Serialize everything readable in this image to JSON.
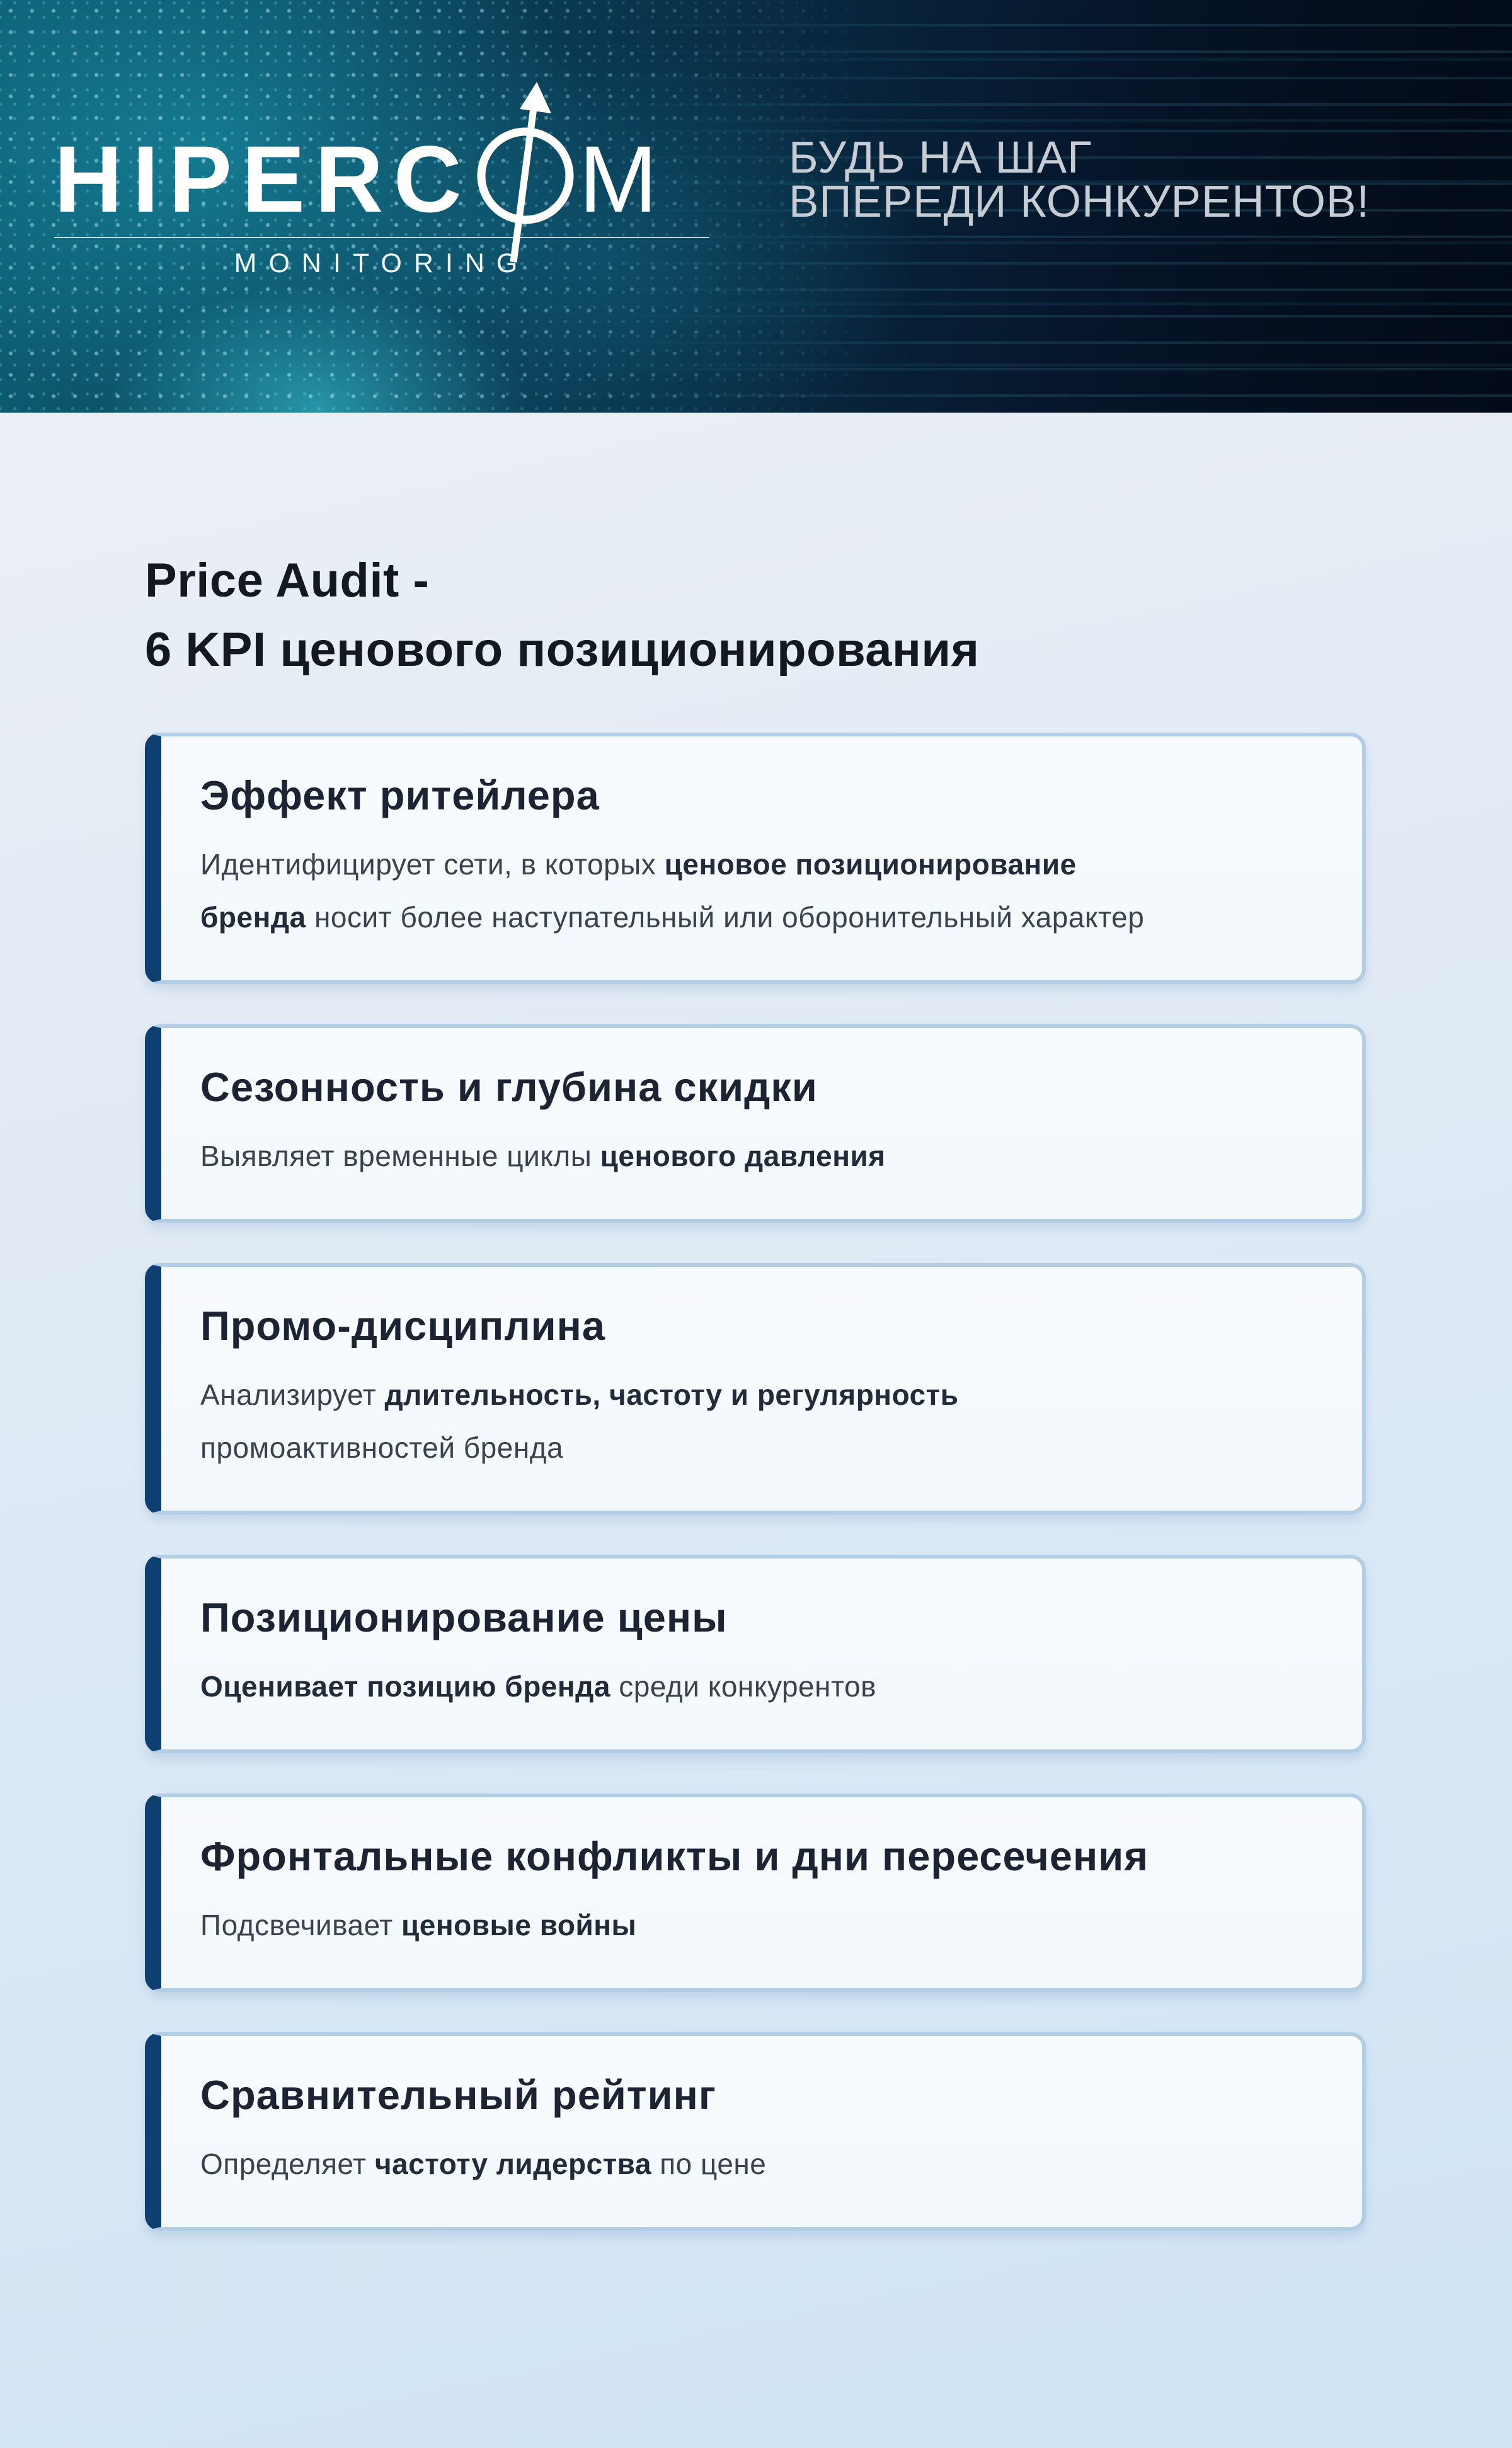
{
  "header": {
    "logo": {
      "text_start": "HIPERC",
      "text_end": "M",
      "arrow_icon": "arrow-through-o",
      "subtitle": "MONITORING"
    },
    "tagline_line1": "БУДЬ НА ШАГ",
    "tagline_line2": "ВПЕРЕДИ КОНКУРЕНТОВ!"
  },
  "page_title": {
    "line1": "Price Audit -",
    "line2": "6 KPI ценового позиционирования"
  },
  "cards": [
    {
      "title": "Эффект ритейлера",
      "description": [
        {
          "text": "Идентифицирует сети, в которых ",
          "bold": false
        },
        {
          "text": "ценовое позиционирование\nбренда",
          "bold": true
        },
        {
          "text": " носит более наступательный или оборонительный характер",
          "bold": false
        }
      ]
    },
    {
      "title": "Сезонность и глубина скидки",
      "description": [
        {
          "text": "Выявляет временные циклы ",
          "bold": false
        },
        {
          "text": "ценового давления",
          "bold": true
        }
      ]
    },
    {
      "title": "Промо-дисциплина",
      "description": [
        {
          "text": "Анализирует ",
          "bold": false
        },
        {
          "text": "длительность, частоту и регулярность",
          "bold": true
        },
        {
          "text": "\nпромоактивностей бренда",
          "bold": false
        }
      ]
    },
    {
      "title": "Позиционирование цены",
      "description": [
        {
          "text": "Оценивает позицию бренда",
          "bold": true
        },
        {
          "text": " среди конкурентов",
          "bold": false
        }
      ]
    },
    {
      "title": "Фронтальные конфликты и дни пересечения",
      "description": [
        {
          "text": "Подсвечивает ",
          "bold": false
        },
        {
          "text": "ценовые войны",
          "bold": true
        }
      ]
    },
    {
      "title": "Сравнительный рейтинг",
      "description": [
        {
          "text": "Определяет ",
          "bold": false
        },
        {
          "text": "частоту лидерства",
          "bold": true
        },
        {
          "text": " по цене",
          "bold": false
        }
      ]
    }
  ],
  "colors": {
    "accent_navy": "#0d4070",
    "card_border": "#b2cde6",
    "card_background": "#f6fafd",
    "title_text": "#14181f",
    "body_text": "#3a424d",
    "hero_teal": "#0d5d72",
    "hero_dark": "#030b18",
    "tagline_text": "#c6ccd4"
  }
}
